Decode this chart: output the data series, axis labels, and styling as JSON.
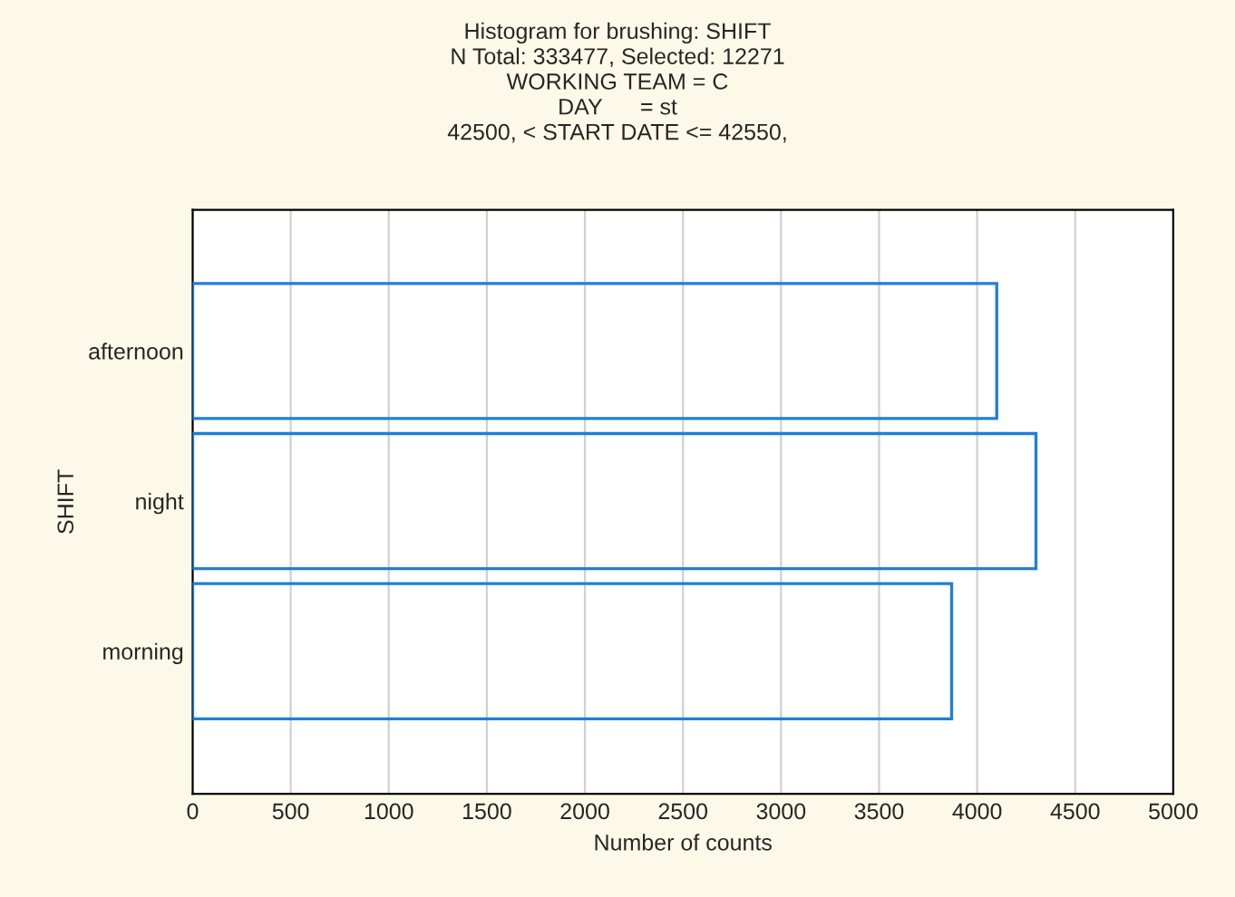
{
  "chart_data": {
    "type": "bar",
    "orientation": "horizontal",
    "title": "Histogram for brushing: SHIFT",
    "subtitle": "N Total: 333477, Selected: 12271\nWORKING TEAM = C\nDAY      = st\n42500, < START DATE <= 42550,",
    "xlabel": "Number of counts",
    "ylabel": "SHIFT",
    "categories": [
      "afternoon",
      "night",
      "morning"
    ],
    "values": [
      4100,
      4300,
      3870
    ],
    "color": "#1e7fd8",
    "xlim": [
      0,
      5000
    ],
    "xticks": [
      0,
      500,
      1000,
      1500,
      2000,
      2500,
      3000,
      3500,
      4000,
      4500,
      5000
    ],
    "grid": "x",
    "legend": false
  }
}
